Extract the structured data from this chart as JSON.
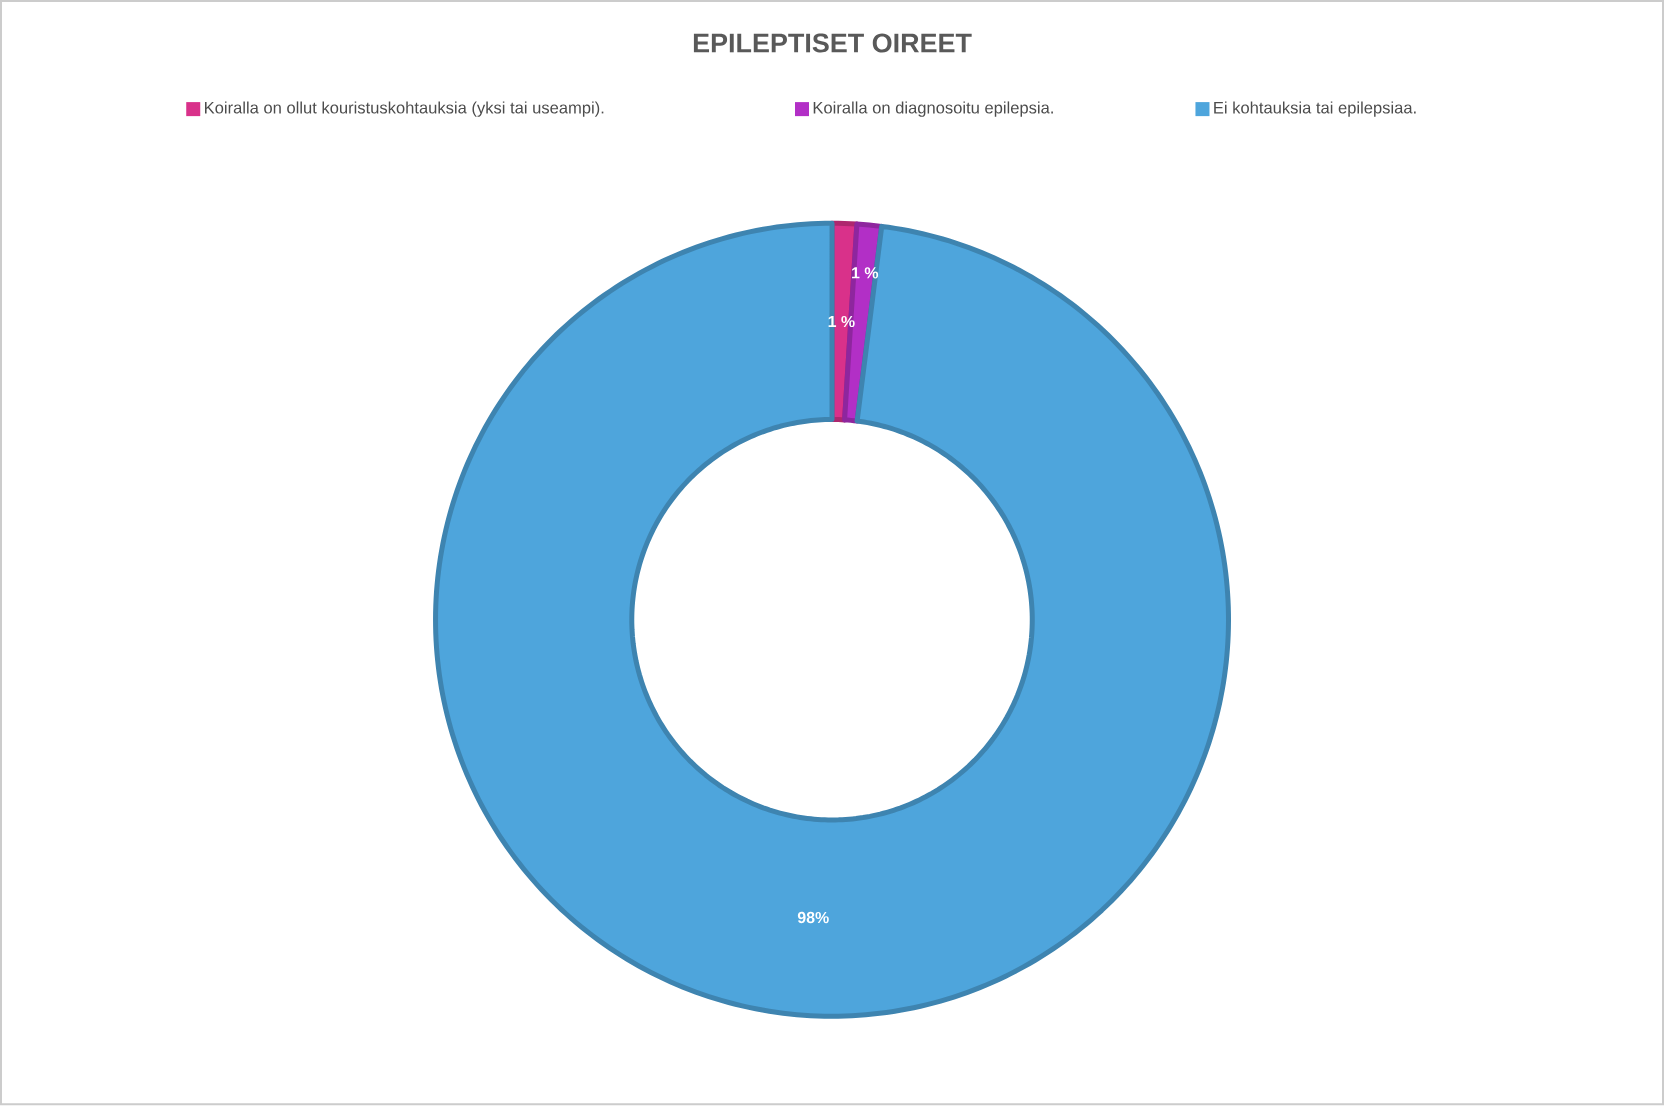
{
  "chart_data": {
    "type": "donut",
    "title": "EPILEPTISET OIREET",
    "categories": [
      "Koiralla on ollut kouristuskohtauksia (yksi tai useampi).",
      "Koiralla on diagnosoitu epilepsia.",
      "Ei kohtauksia tai epilepsiaa."
    ],
    "values": [
      1,
      1,
      98
    ],
    "colors": [
      "#d9318a",
      "#b22fc6",
      "#4ea5dc"
    ],
    "value_labels": [
      "1 %",
      "1 %",
      "98%"
    ],
    "legend": "top"
  }
}
